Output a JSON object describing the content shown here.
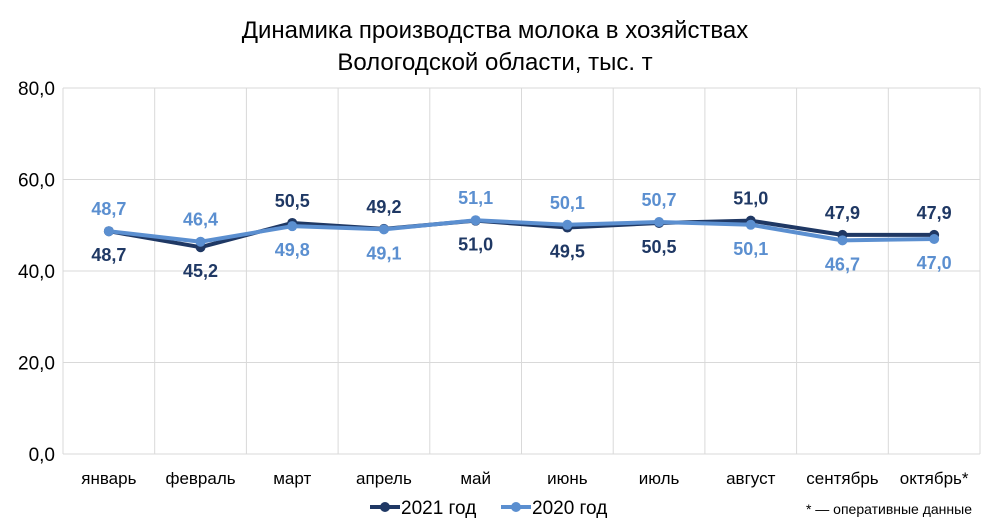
{
  "chart_data": {
    "type": "line",
    "title": [
      "Динамика производства молока в хозяйствах",
      "Вологодской области, тыс. т"
    ],
    "xlabel": "",
    "ylabel": "",
    "ylim": [
      0,
      80
    ],
    "yticks": [
      "0,0",
      "20,0",
      "40,0",
      "60,0",
      "80,0"
    ],
    "grid": true,
    "legend_position": "bottom",
    "categories": [
      "январь",
      "февраль",
      "март",
      "апрель",
      "май",
      "июнь",
      "июль",
      "август",
      "сентябрь",
      "октябрь*"
    ],
    "series": [
      {
        "name": "2021 год",
        "color": "#1f3864",
        "values": [
          48.7,
          45.2,
          50.5,
          49.2,
          51.0,
          49.5,
          50.5,
          51.0,
          47.9,
          47.9
        ],
        "labels": [
          "48,7",
          "45,2",
          "50,5",
          "49,2",
          "51,0",
          "49,5",
          "50,5",
          "51,0",
          "47,9",
          "47,9"
        ]
      },
      {
        "name": "2020 год",
        "color": "#5b8fd0",
        "values": [
          48.7,
          46.4,
          49.8,
          49.1,
          51.1,
          50.1,
          50.7,
          50.1,
          46.7,
          47.0
        ],
        "labels": [
          "48,7",
          "46,4",
          "49,8",
          "49,1",
          "51,1",
          "50,1",
          "50,7",
          "50,1",
          "46,7",
          "47,0"
        ]
      }
    ],
    "footnote": "* — оперативные данные"
  }
}
